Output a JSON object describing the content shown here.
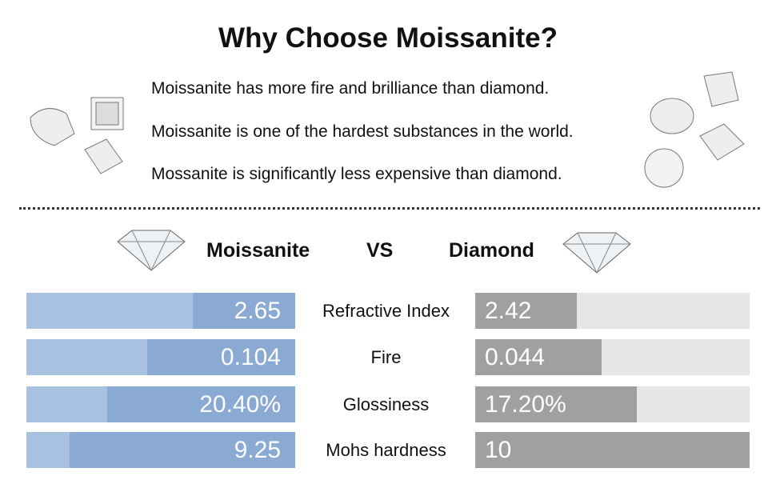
{
  "title": "Why Choose Moissanite?",
  "lines": [
    "Moissanite has more fire and brilliance than diamond.",
    "Moissanite is one of the hardest substances in the world.",
    "Mossanite is significantly less expensive than diamond."
  ],
  "header": {
    "left": "Moissanite",
    "vs": "VS",
    "right": "Diamond"
  },
  "colors": {
    "moissanite_track": "#a9c1e1",
    "moissanite_fill": "#8aaad4",
    "diamond_fill": "#a0a0a0",
    "diamond_track": "#e6e6e6"
  },
  "icons": [
    "gemstone-cluster-left-icon",
    "gemstone-cluster-right-icon",
    "round-diamond-icon"
  ],
  "chart_data": {
    "type": "bar",
    "categories": [
      "Refractive Index",
      "Fire",
      "Glossiness",
      "Mohs hardness"
    ],
    "series": [
      {
        "name": "Moissanite",
        "labels": [
          "2.65",
          "0.104",
          "20.40%",
          "9.25"
        ],
        "fill": [
          0.38,
          0.55,
          0.7,
          0.84
        ]
      },
      {
        "name": "Diamond",
        "labels": [
          "2.42",
          "0.044",
          "17.20%",
          "10"
        ],
        "fill": [
          0.37,
          0.46,
          0.59,
          1.0
        ]
      }
    ]
  }
}
